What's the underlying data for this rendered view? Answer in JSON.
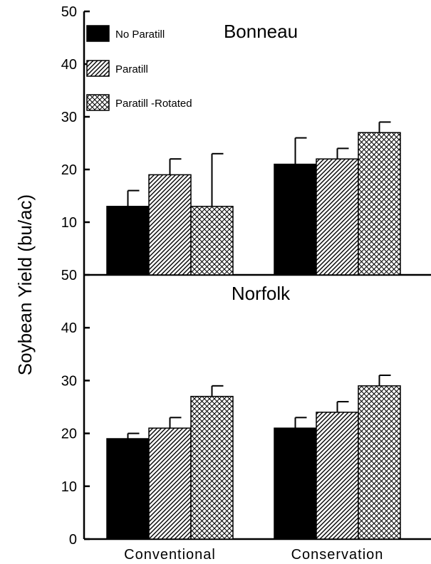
{
  "chart_data": {
    "type": "bar",
    "ylabel": "Soybean Yield (bu/ac)",
    "categories": [
      "Conventional",
      "Conservation"
    ],
    "legend": {
      "placement": "top-left",
      "entries": [
        "No  Paratill",
        "Paratill",
        "Paratill  -Rotated"
      ]
    },
    "colors": {
      "no_paratill": "#000000",
      "hatch": "#000000",
      "background": "#ffffff"
    },
    "panels": [
      {
        "title": "Bonneau",
        "ylim": [
          0,
          50
        ],
        "yticks": [
          "50",
          "40",
          "30",
          "20",
          "10"
        ],
        "series": [
          {
            "name": "No  Paratill",
            "pattern": "solid",
            "values": [
              13,
              21
            ],
            "errors": [
              16,
              26
            ]
          },
          {
            "name": "Paratill",
            "pattern": "diagonal",
            "values": [
              19,
              22
            ],
            "errors": [
              22,
              24
            ]
          },
          {
            "name": "Paratill  -Rotated",
            "pattern": "crosshatch",
            "values": [
              13,
              27
            ],
            "errors": [
              23,
              29
            ]
          }
        ]
      },
      {
        "title": "Norfolk",
        "ylim": [
          0,
          50
        ],
        "yticks": [
          "50",
          "40",
          "30",
          "20",
          "10",
          "0"
        ],
        "series": [
          {
            "name": "No  Paratill",
            "pattern": "solid",
            "values": [
              19,
              21
            ],
            "errors": [
              20,
              23
            ]
          },
          {
            "name": "Paratill",
            "pattern": "diagonal",
            "values": [
              21,
              24
            ],
            "errors": [
              23,
              26
            ]
          },
          {
            "name": "Paratill  -Rotated",
            "pattern": "crosshatch",
            "values": [
              27,
              29
            ],
            "errors": [
              29,
              31
            ]
          }
        ]
      }
    ]
  }
}
